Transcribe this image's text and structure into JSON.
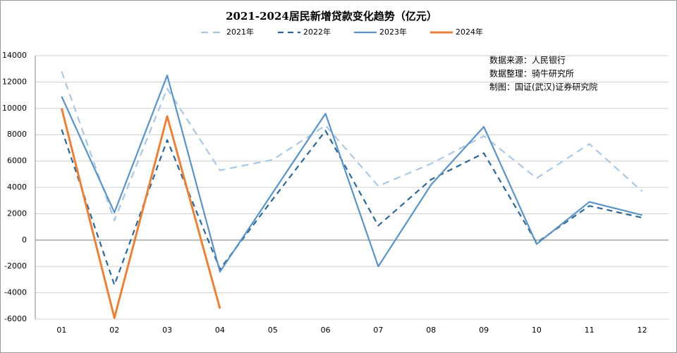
{
  "chart_data": {
    "type": "line",
    "title": "2021-2024居民新增贷款变化趋势（亿元）",
    "categories": [
      "01",
      "02",
      "03",
      "04",
      "05",
      "06",
      "07",
      "08",
      "09",
      "10",
      "11",
      "12"
    ],
    "series": [
      {
        "name": "2021年",
        "color": "#a9c8e4",
        "dash": "10,7",
        "values": [
          12800,
          1500,
          11500,
          5300,
          6100,
          8700,
          4100,
          5800,
          7900,
          4700,
          7300,
          3700
        ]
      },
      {
        "name": "2022年",
        "color": "#2e6795",
        "dash": "8,6",
        "values": [
          8400,
          -3400,
          7600,
          -2200,
          3100,
          8300,
          1100,
          4600,
          6600,
          -200,
          2600,
          1700
        ]
      },
      {
        "name": "2023年",
        "color": "#5b93c5",
        "values": [
          10900,
          2100,
          12500,
          -2400,
          3600,
          9600,
          -2000,
          4200,
          8600,
          -300,
          2900,
          1900
        ]
      },
      {
        "name": "2024年",
        "color": "#e8823a",
        "values": [
          10000,
          -5900,
          9400,
          -5200,
          null,
          null,
          null,
          null,
          null,
          null,
          null,
          null
        ]
      }
    ],
    "ylim": [
      -6000,
      14000
    ],
    "yticks": [
      -6000,
      -4000,
      -2000,
      0,
      2000,
      4000,
      6000,
      8000,
      10000,
      12000,
      14000
    ],
    "grid": true,
    "annotations": [
      "数据来源：人民银行",
      "数据整理：骑牛研究所",
      "制图：国证(武汉)证券研究院"
    ]
  }
}
